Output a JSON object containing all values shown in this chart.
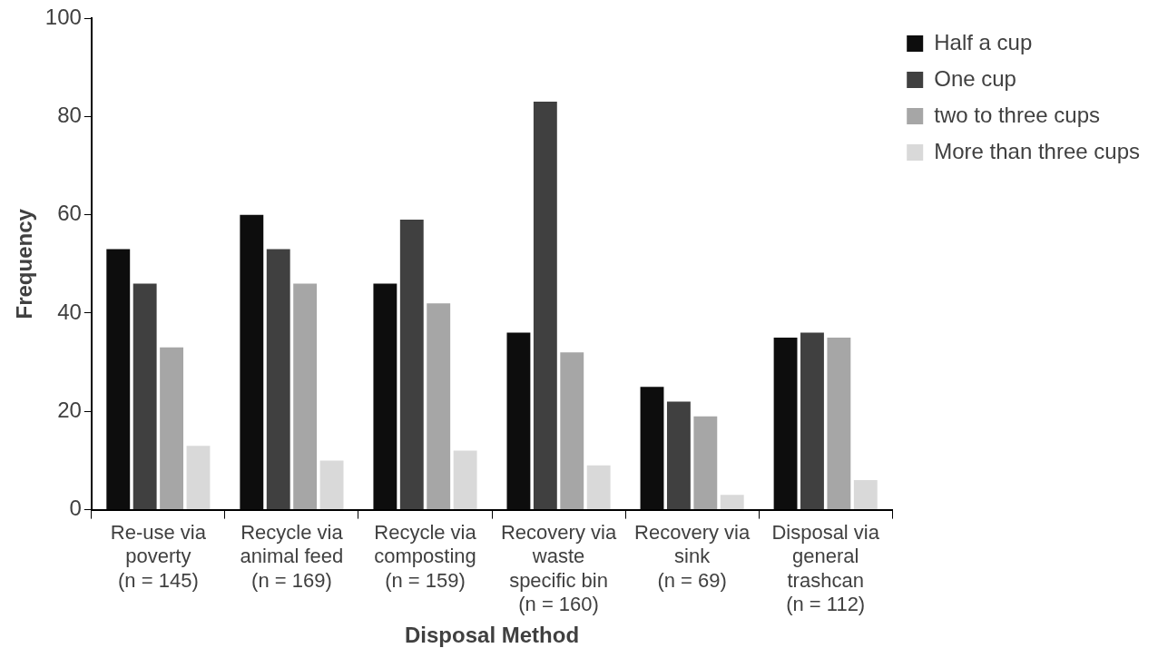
{
  "chart_data": {
    "type": "bar",
    "xlabel": "Disposal Method",
    "ylabel": "Frequency",
    "categories": [
      "Re-use via\npoverty\n(n = 145)",
      "Recycle via\nanimal feed\n(n = 169)",
      "Recycle via\ncomposting\n(n = 159)",
      "Recovery via\nwaste\nspecific bin\n(n = 160)",
      "Recovery via\nsink\n(n = 69)",
      "Disposal via\ngeneral\ntrashcan\n(n = 112)"
    ],
    "series": [
      {
        "name": "Half a cup",
        "color": "#0d0d0d",
        "values": [
          53,
          60,
          46,
          36,
          25,
          35
        ]
      },
      {
        "name": "One cup",
        "color": "#404040",
        "values": [
          46,
          53,
          59,
          83,
          22,
          36
        ]
      },
      {
        "name": "two to three cups",
        "color": "#a6a6a6",
        "values": [
          33,
          46,
          42,
          32,
          19,
          35
        ]
      },
      {
        "name": "More than three cups",
        "color": "#d9d9d9",
        "values": [
          13,
          10,
          12,
          9,
          3,
          6
        ]
      }
    ],
    "ylim": [
      0,
      100
    ],
    "yticks": [
      0,
      20,
      40,
      60,
      80,
      100
    ],
    "grid": false,
    "legend": "top right"
  }
}
